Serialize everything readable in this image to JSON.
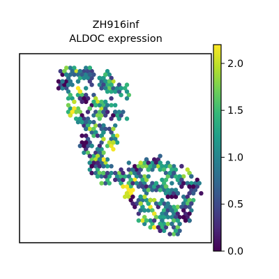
{
  "chart_data": {
    "type": "scatter",
    "title_lines": [
      "ZH916inf",
      "ALDOC expression"
    ],
    "xlabel": "",
    "ylabel": "",
    "grid": false,
    "axes_ticks_visible": false,
    "colormap": "viridis",
    "colormap_stops": [
      "#440154",
      "#482878",
      "#3e4989",
      "#31688e",
      "#26828e",
      "#1f9e89",
      "#35b779",
      "#6ece58",
      "#b5de2b",
      "#fde725"
    ],
    "colorbar": {
      "min": 0.0,
      "max": 2.2,
      "ticks": [
        0.0,
        0.5,
        1.0,
        1.5,
        2.0
      ],
      "tick_labels": [
        "0.0",
        "0.5",
        "1.0",
        "1.5",
        "2.0"
      ],
      "position": "right"
    },
    "value_range": [
      0.0,
      2.2
    ],
    "clusters": [
      {
        "name": "",
        "region": "upper-left",
        "points": [
          [
            0.23,
            0.15
          ],
          [
            0.27,
            0.12
          ],
          [
            0.32,
            0.1
          ],
          [
            0.37,
            0.11
          ],
          [
            0.42,
            0.13
          ],
          [
            0.47,
            0.16
          ],
          [
            0.52,
            0.2
          ],
          [
            0.3,
            0.22
          ],
          [
            0.35,
            0.25
          ],
          [
            0.4,
            0.28
          ],
          [
            0.45,
            0.3
          ],
          [
            0.5,
            0.33
          ],
          [
            0.27,
            0.3
          ],
          [
            0.33,
            0.36
          ],
          [
            0.38,
            0.4
          ],
          [
            0.43,
            0.43
          ],
          [
            0.48,
            0.45
          ],
          [
            0.35,
            0.48
          ],
          [
            0.4,
            0.52
          ],
          [
            0.44,
            0.56
          ],
          [
            0.39,
            0.6
          ],
          [
            0.45,
            0.64
          ]
        ],
        "values": [
          0.2,
          1.4,
          0.6,
          1.1,
          0.9,
          1.2,
          0.8,
          1.6,
          0.4,
          1.3,
          1.0,
          0.7,
          1.8,
          0.5,
          1.2,
          0.9,
          1.4,
          0.3,
          1.0,
          1.5,
          0.6,
          1.1
        ]
      },
      {
        "name": "",
        "region": "lower-right",
        "points": [
          [
            0.55,
            0.65
          ],
          [
            0.6,
            0.62
          ],
          [
            0.65,
            0.6
          ],
          [
            0.7,
            0.59
          ],
          [
            0.75,
            0.6
          ],
          [
            0.8,
            0.63
          ],
          [
            0.85,
            0.66
          ],
          [
            0.9,
            0.7
          ],
          [
            0.58,
            0.72
          ],
          [
            0.64,
            0.7
          ],
          [
            0.7,
            0.7
          ],
          [
            0.76,
            0.71
          ],
          [
            0.82,
            0.74
          ],
          [
            0.88,
            0.77
          ],
          [
            0.62,
            0.8
          ],
          [
            0.68,
            0.78
          ],
          [
            0.74,
            0.8
          ],
          [
            0.8,
            0.83
          ],
          [
            0.86,
            0.86
          ],
          [
            0.68,
            0.88
          ],
          [
            0.75,
            0.9
          ],
          [
            0.82,
            0.92
          ]
        ],
        "values": [
          1.0,
          0.5,
          1.3,
          0.8,
          1.6,
          0.9,
          1.2,
          0.4,
          2.0,
          0.7,
          1.1,
          1.4,
          0.6,
          1.0,
          0.3,
          1.5,
          0.9,
          1.2,
          0.5,
          1.8,
          0.7,
          1.1
        ]
      }
    ]
  }
}
